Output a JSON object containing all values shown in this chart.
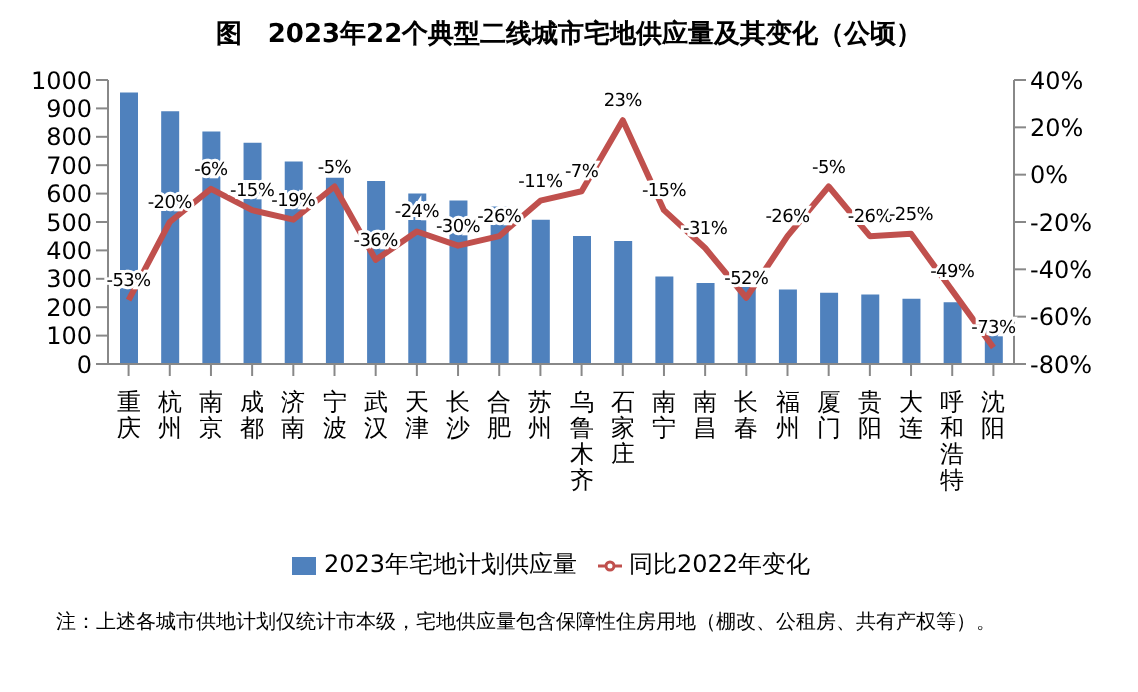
{
  "chart_data": {
    "type": "bar",
    "title": "图　2023年22个典型二线城市宅地供应量及其变化（公顷）",
    "categories": [
      "重庆",
      "杭州",
      "南京",
      "成都",
      "济南",
      "宁波",
      "武汉",
      "天津",
      "长沙",
      "合肥",
      "苏州",
      "乌鲁木齐",
      "石家庄",
      "南宁",
      "南昌",
      "长春",
      "福州",
      "厦门",
      "贵阳",
      "大连",
      "呼和浩特",
      "沈阳"
    ],
    "series": [
      {
        "name": "2023年宅地计划供应量",
        "color": "#4f81bd",
        "values": [
          956,
          890,
          819,
          779,
          713,
          656,
          644,
          600,
          576,
          555,
          508,
          451,
          433,
          308,
          285,
          287,
          262,
          251,
          245,
          230,
          217,
          120
        ]
      },
      {
        "name": "同比2022年变化",
        "type": "line",
        "axis": "y2",
        "color": "#c0504d",
        "values": [
          -53,
          -20,
          -6,
          -15,
          -19,
          -5,
          -36,
          -24,
          -30,
          -26,
          -11,
          -7,
          23,
          -15,
          -31,
          -52,
          -26,
          -5,
          -26,
          -25,
          -49,
          -73
        ],
        "value_labels": [
          "-53%",
          "-20%",
          "-6%",
          "-15%",
          "-19%",
          "-5%",
          "-36%",
          "-24%",
          "-30%",
          "-26%",
          "-11%",
          "-7%",
          "23%",
          "-15%",
          "-31%",
          "-52%",
          "-26%",
          "-5%",
          "-26%",
          "-25%",
          "-49%",
          "-73%"
        ]
      }
    ],
    "ylim": [
      0,
      1000
    ],
    "yticks": [
      0,
      100,
      200,
      300,
      400,
      500,
      600,
      700,
      800,
      900,
      1000
    ],
    "y2lim": [
      -80,
      40
    ],
    "y2ticks": [
      {
        "value": -80,
        "label": "-80%"
      },
      {
        "value": -60,
        "label": "-60%"
      },
      {
        "value": -40,
        "label": "-40%"
      },
      {
        "value": -20,
        "label": "-20%"
      },
      {
        "value": 0,
        "label": "0%"
      },
      {
        "value": 20,
        "label": "20%"
      },
      {
        "value": 40,
        "label": "40%"
      }
    ],
    "grid": false,
    "legend": "bottom",
    "marker": "none",
    "annotations": [
      "注：上述各城市供地计划仅统计市本级，宅地供应量包含保障性住房用地（棚改、公租房、共有产权等）。"
    ]
  }
}
